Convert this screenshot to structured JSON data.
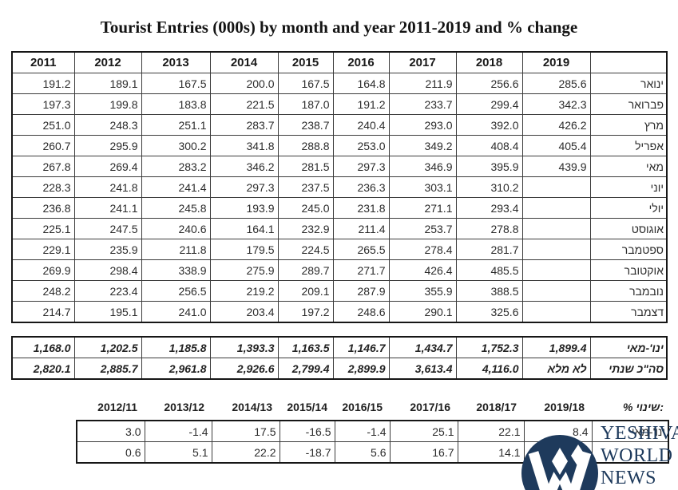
{
  "chart_data": {
    "type": "table",
    "title": "Tourist Entries (000s) by month and year 2011-2019 and % change",
    "year_columns": [
      "2011",
      "2012",
      "2013",
      "2014",
      "2015",
      "2016",
      "2017",
      "2018",
      "2019"
    ],
    "monthly_rows": [
      {
        "label": "ינואר",
        "values": [
          "191.2",
          "189.1",
          "167.5",
          "200.0",
          "167.5",
          "164.8",
          "211.9",
          "256.6",
          "285.6"
        ]
      },
      {
        "label": "פברואר",
        "values": [
          "197.3",
          "199.8",
          "183.8",
          "221.5",
          "187.0",
          "191.2",
          "233.7",
          "299.4",
          "342.3"
        ]
      },
      {
        "label": "מרץ",
        "values": [
          "251.0",
          "248.3",
          "251.1",
          "283.7",
          "238.7",
          "240.4",
          "293.0",
          "392.0",
          "426.2"
        ]
      },
      {
        "label": "אפריל",
        "values": [
          "260.7",
          "295.9",
          "300.2",
          "341.8",
          "288.8",
          "253.0",
          "349.2",
          "408.4",
          "405.4"
        ]
      },
      {
        "label": "מאי",
        "values": [
          "267.8",
          "269.4",
          "283.2",
          "346.2",
          "281.5",
          "297.3",
          "346.9",
          "395.9",
          "439.9"
        ]
      },
      {
        "label": "יוני",
        "values": [
          "228.3",
          "241.8",
          "241.4",
          "297.3",
          "237.5",
          "236.3",
          "303.1",
          "310.2",
          ""
        ]
      },
      {
        "label": "יולי",
        "values": [
          "236.8",
          "241.1",
          "245.8",
          "193.9",
          "245.0",
          "231.8",
          "271.1",
          "293.4",
          ""
        ]
      },
      {
        "label": "אוגוסט",
        "values": [
          "225.1",
          "247.5",
          "240.6",
          "164.1",
          "232.9",
          "211.4",
          "253.7",
          "278.8",
          ""
        ]
      },
      {
        "label": "ספטמבר",
        "values": [
          "229.1",
          "235.9",
          "211.8",
          "179.5",
          "224.5",
          "265.5",
          "278.4",
          "281.7",
          ""
        ]
      },
      {
        "label": "אוקטובר",
        "values": [
          "269.9",
          "298.4",
          "338.9",
          "275.9",
          "289.7",
          "271.7",
          "426.4",
          "485.5",
          ""
        ]
      },
      {
        "label": "נובמבר",
        "values": [
          "248.2",
          "223.4",
          "256.5",
          "219.2",
          "209.1",
          "287.9",
          "355.9",
          "388.5",
          ""
        ]
      },
      {
        "label": "דצמבר",
        "values": [
          "214.7",
          "195.1",
          "241.0",
          "203.4",
          "197.2",
          "248.6",
          "290.1",
          "325.6",
          ""
        ]
      }
    ],
    "summary_rows": [
      {
        "label": "ינו'-מאי",
        "values": [
          "1,168.0",
          "1,202.5",
          "1,185.8",
          "1,393.3",
          "1,163.5",
          "1,146.7",
          "1,434.7",
          "1,752.3",
          "1,899.4"
        ]
      },
      {
        "label": "סה\"כ שנתי",
        "values": [
          "2,820.1",
          "2,885.7",
          "2,961.8",
          "2,926.6",
          "2,799.4",
          "2,899.9",
          "3,613.4",
          "4,116.0",
          "לא מלא"
        ]
      }
    ],
    "pct_change": {
      "section_label": "% שינוי:",
      "period_columns": [
        "2012/11",
        "2013/12",
        "2014/13",
        "2015/14",
        "2016/15",
        "2017/16",
        "2018/17",
        "2019/18"
      ],
      "rows": [
        {
          "label": "ינו'-מאי",
          "values": [
            "3.0",
            "-1.4",
            "17.5",
            "-16.5",
            "-1.4",
            "25.1",
            "22.1",
            "8.4"
          ]
        },
        {
          "label": "",
          "values": [
            "0.6",
            "5.1",
            "22.2",
            "-18.7",
            "5.6",
            "16.7",
            "14.1",
            ""
          ]
        }
      ]
    }
  },
  "watermark": {
    "lines": [
      "YESHIVA",
      "WORLD",
      "NEWS"
    ],
    "logo_color": "#1e3a5c"
  }
}
